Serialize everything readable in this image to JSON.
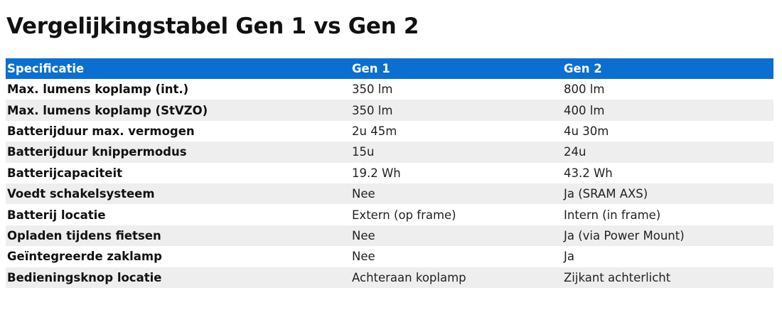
{
  "title": "Vergelijkingstabel Gen 1 vs Gen 2",
  "table": {
    "headers": [
      "Specificatie",
      "Gen 1",
      "Gen 2"
    ],
    "rows": [
      [
        "Max. lumens koplamp (int.)",
        "350 lm",
        "800 lm"
      ],
      [
        "Max. lumens koplamp (StVZO)",
        "350 lm",
        "400 lm"
      ],
      [
        "Batterijduur max. vermogen",
        "2u 45m",
        "4u 30m"
      ],
      [
        "Batterijduur knippermodus",
        "15u",
        "24u"
      ],
      [
        "Batterijcapaciteit",
        "19.2 Wh",
        "43.2 Wh"
      ],
      [
        "Voedt schakelsysteem",
        "Nee",
        "Ja (SRAM AXS)"
      ],
      [
        "Batterij locatie",
        "Extern (op frame)",
        "Intern (in frame)"
      ],
      [
        "Opladen tijdens fietsen",
        "Nee",
        "Ja (via Power Mount)"
      ],
      [
        "Geïntegreerde zaklamp",
        "Nee",
        "Ja"
      ],
      [
        "Bedieningsknop locatie",
        "Achteraan koplamp",
        "Zijkant achterlicht"
      ]
    ]
  },
  "colors": {
    "header_background": "#0a6fd1",
    "header_text": "#ffffff",
    "stripe_row": "#eeeeee"
  }
}
